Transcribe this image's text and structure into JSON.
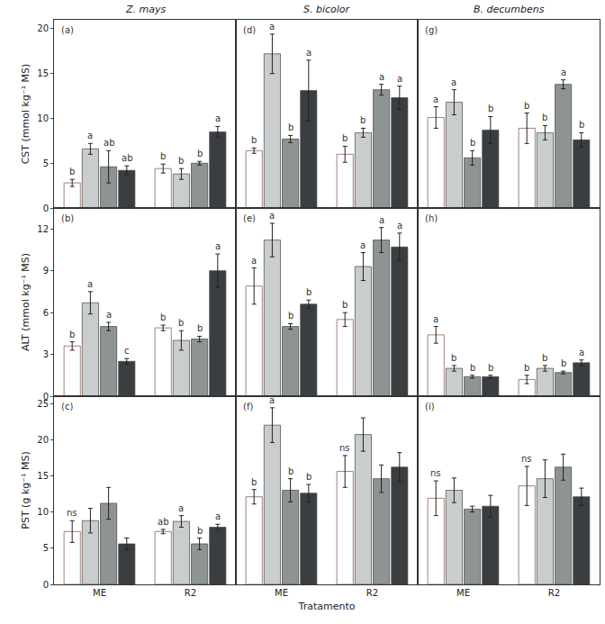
{
  "chart_data": [
    {
      "type": "bar",
      "title": "Z. mays",
      "annotations": [
        "(a)"
      ],
      "y_label": "CST (mmol kg⁻¹ MS)",
      "categories": [
        "ME",
        "R2"
      ],
      "ylim": [
        0,
        21
      ],
      "yticks": [
        0,
        5,
        10,
        15,
        20
      ],
      "tick_labels": "y",
      "series": [
        {
          "color": "#ffffff",
          "values": [
            2.8,
            4.4
          ],
          "errors": [
            0.4,
            0.5
          ],
          "letters": [
            "b",
            "b"
          ]
        },
        {
          "color": "#c9cdcd",
          "values": [
            6.6,
            3.8
          ],
          "errors": [
            0.6,
            0.6
          ],
          "letters": [
            "a",
            "b"
          ]
        },
        {
          "color": "#8e9393",
          "values": [
            4.6,
            5.0
          ],
          "errors": [
            1.8,
            0.2
          ],
          "letters": [
            "ab",
            "b"
          ]
        },
        {
          "color": "#3b3e40",
          "values": [
            4.2,
            8.5
          ],
          "errors": [
            0.5,
            0.6
          ],
          "letters": [
            "ab",
            "a"
          ]
        }
      ]
    },
    {
      "type": "bar",
      "title": "S. bicolor",
      "annotations": [
        "(d)"
      ],
      "categories": [
        "ME",
        "R2"
      ],
      "ylim": [
        0,
        21
      ],
      "yticks": [
        0,
        5,
        10,
        15,
        20
      ],
      "tick_labels": false,
      "series": [
        {
          "color": "#ffffff",
          "values": [
            6.4,
            6.0
          ],
          "errors": [
            0.3,
            0.9
          ],
          "letters": [
            "b",
            "b"
          ]
        },
        {
          "color": "#c9cdcd",
          "values": [
            17.2,
            8.4
          ],
          "errors": [
            2.2,
            0.5
          ],
          "letters": [
            "a",
            "b"
          ]
        },
        {
          "color": "#8e9393",
          "values": [
            7.7,
            13.2
          ],
          "errors": [
            0.4,
            0.6
          ],
          "letters": [
            "b",
            "a"
          ]
        },
        {
          "color": "#3b3e40",
          "values": [
            13.1,
            12.3
          ],
          "errors": [
            3.4,
            1.3
          ],
          "letters": [
            "a",
            "a"
          ]
        }
      ]
    },
    {
      "type": "bar",
      "title": "B. decumbens",
      "annotations": [
        "(g)"
      ],
      "categories": [
        "ME",
        "R2"
      ],
      "ylim": [
        0,
        21
      ],
      "yticks": [
        0,
        5,
        10,
        15,
        20
      ],
      "tick_labels": false,
      "series": [
        {
          "color": "#ffffff",
          "values": [
            10.1,
            8.9
          ],
          "errors": [
            1.2,
            1.7
          ],
          "letters": [
            "a",
            "b"
          ]
        },
        {
          "color": "#c9cdcd",
          "values": [
            11.8,
            8.4
          ],
          "errors": [
            1.4,
            0.8
          ],
          "letters": [
            "a",
            "b"
          ]
        },
        {
          "color": "#8e9393",
          "values": [
            5.6,
            13.8
          ],
          "errors": [
            0.8,
            0.5
          ],
          "letters": [
            "b",
            "a"
          ]
        },
        {
          "color": "#3b3e40",
          "values": [
            8.7,
            7.6
          ],
          "errors": [
            1.5,
            0.8
          ],
          "letters": [
            "b",
            "b"
          ]
        }
      ]
    },
    {
      "type": "bar",
      "annotations": [
        "(b)"
      ],
      "y_label": "ALT (mmol kg⁻¹ MS)",
      "categories": [
        "ME",
        "R2"
      ],
      "ylim": [
        0,
        13.5
      ],
      "yticks": [
        0,
        3,
        6,
        9,
        12
      ],
      "tick_labels": "y",
      "series": [
        {
          "color": "#ffffff",
          "values": [
            3.6,
            4.9
          ],
          "errors": [
            0.3,
            0.2
          ],
          "letters": [
            "b",
            "b"
          ]
        },
        {
          "color": "#c9cdcd",
          "values": [
            6.7,
            4.0
          ],
          "errors": [
            0.8,
            0.7
          ],
          "letters": [
            "a",
            "b"
          ]
        },
        {
          "color": "#8e9393",
          "values": [
            5.0,
            4.1
          ],
          "errors": [
            0.3,
            0.2
          ],
          "letters": [
            "a",
            "b"
          ]
        },
        {
          "color": "#3b3e40",
          "values": [
            2.5,
            9.0
          ],
          "errors": [
            0.2,
            1.2
          ],
          "letters": [
            "c",
            "a"
          ]
        }
      ]
    },
    {
      "type": "bar",
      "annotations": [
        "(e)"
      ],
      "categories": [
        "ME",
        "R2"
      ],
      "ylim": [
        0,
        13.5
      ],
      "yticks": [
        0,
        3,
        6,
        9,
        12
      ],
      "tick_labels": false,
      "series": [
        {
          "color": "#ffffff",
          "values": [
            7.9,
            5.5
          ],
          "errors": [
            1.3,
            0.5
          ],
          "letters": [
            "a",
            "b"
          ]
        },
        {
          "color": "#c9cdcd",
          "values": [
            11.2,
            9.3
          ],
          "errors": [
            1.2,
            1.0
          ],
          "letters": [
            "a",
            "a"
          ]
        },
        {
          "color": "#8e9393",
          "values": [
            5.0,
            11.2
          ],
          "errors": [
            0.2,
            0.9
          ],
          "letters": [
            "b",
            "a"
          ]
        },
        {
          "color": "#3b3e40",
          "values": [
            6.6,
            10.7
          ],
          "errors": [
            0.3,
            1.0
          ],
          "letters": [
            "b",
            "a"
          ]
        }
      ]
    },
    {
      "type": "bar",
      "annotations": [
        "(h)"
      ],
      "categories": [
        "ME",
        "R2"
      ],
      "ylim": [
        0,
        13.5
      ],
      "yticks": [
        0,
        3,
        6,
        9,
        12
      ],
      "tick_labels": false,
      "series": [
        {
          "color": "#ffffff",
          "values": [
            4.4,
            1.2
          ],
          "errors": [
            0.6,
            0.3
          ],
          "letters": [
            "a",
            "b"
          ]
        },
        {
          "color": "#c9cdcd",
          "values": [
            2.0,
            2.0
          ],
          "errors": [
            0.2,
            0.2
          ],
          "letters": [
            "b",
            "b"
          ]
        },
        {
          "color": "#8e9393",
          "values": [
            1.4,
            1.7
          ],
          "errors": [
            0.1,
            0.1
          ],
          "letters": [
            "b",
            "b"
          ]
        },
        {
          "color": "#3b3e40",
          "values": [
            1.4,
            2.4
          ],
          "errors": [
            0.1,
            0.2
          ],
          "letters": [
            "b",
            "a"
          ]
        }
      ]
    },
    {
      "type": "bar",
      "annotations": [
        "(c)"
      ],
      "y_label": "PST (g kg⁻¹ MS)",
      "categories": [
        "ME",
        "R2"
      ],
      "ylim": [
        0,
        26
      ],
      "yticks": [
        0,
        5,
        10,
        15,
        20,
        25
      ],
      "tick_labels": true,
      "series": [
        {
          "color": "#ffffff",
          "values": [
            7.3,
            7.3
          ],
          "errors": [
            1.5,
            0.3
          ],
          "letters": [
            "ns",
            "ab"
          ]
        },
        {
          "color": "#c9cdcd",
          "values": [
            8.8,
            8.7
          ],
          "errors": [
            1.7,
            0.8
          ],
          "letters": [
            null,
            "a"
          ]
        },
        {
          "color": "#8e9393",
          "values": [
            11.2,
            5.6
          ],
          "errors": [
            2.2,
            0.8
          ],
          "letters": [
            null,
            "b"
          ]
        },
        {
          "color": "#3b3e40",
          "values": [
            5.6,
            7.9
          ],
          "errors": [
            0.8,
            0.4
          ],
          "letters": [
            null,
            "a"
          ]
        }
      ]
    },
    {
      "type": "bar",
      "annotations": [
        "(f)"
      ],
      "x_label": "Tratamento",
      "categories": [
        "ME",
        "R2"
      ],
      "ylim": [
        0,
        26
      ],
      "yticks": [
        0,
        5,
        10,
        15,
        20,
        25
      ],
      "tick_labels": "x",
      "series": [
        {
          "color": "#ffffff",
          "values": [
            12.1,
            15.6
          ],
          "errors": [
            1.0,
            2.2
          ],
          "letters": [
            "b",
            "ns"
          ]
        },
        {
          "color": "#c9cdcd",
          "values": [
            22.0,
            20.7
          ],
          "errors": [
            2.4,
            2.3
          ],
          "letters": [
            "a",
            null
          ]
        },
        {
          "color": "#8e9393",
          "values": [
            13.0,
            14.6
          ],
          "errors": [
            1.6,
            1.9
          ],
          "letters": [
            "b",
            null
          ]
        },
        {
          "color": "#3b3e40",
          "values": [
            12.6,
            16.2
          ],
          "errors": [
            1.2,
            2.0
          ],
          "letters": [
            "b",
            null
          ]
        }
      ]
    },
    {
      "type": "bar",
      "annotations": [
        "(i)"
      ],
      "categories": [
        "ME",
        "R2"
      ],
      "ylim": [
        0,
        26
      ],
      "yticks": [
        0,
        5,
        10,
        15,
        20,
        25
      ],
      "tick_labels": "x",
      "series": [
        {
          "color": "#ffffff",
          "values": [
            11.9,
            13.6
          ],
          "errors": [
            2.4,
            2.7
          ],
          "letters": [
            "ns",
            "ns"
          ]
        },
        {
          "color": "#c9cdcd",
          "values": [
            13.0,
            14.6
          ],
          "errors": [
            1.7,
            2.6
          ],
          "letters": [
            null,
            null
          ]
        },
        {
          "color": "#8e9393",
          "values": [
            10.4,
            16.2
          ],
          "errors": [
            0.4,
            1.8
          ],
          "letters": [
            null,
            null
          ]
        },
        {
          "color": "#3b3e40",
          "values": [
            10.8,
            12.1
          ],
          "errors": [
            1.5,
            1.2
          ],
          "letters": [
            null,
            null
          ]
        }
      ]
    }
  ]
}
